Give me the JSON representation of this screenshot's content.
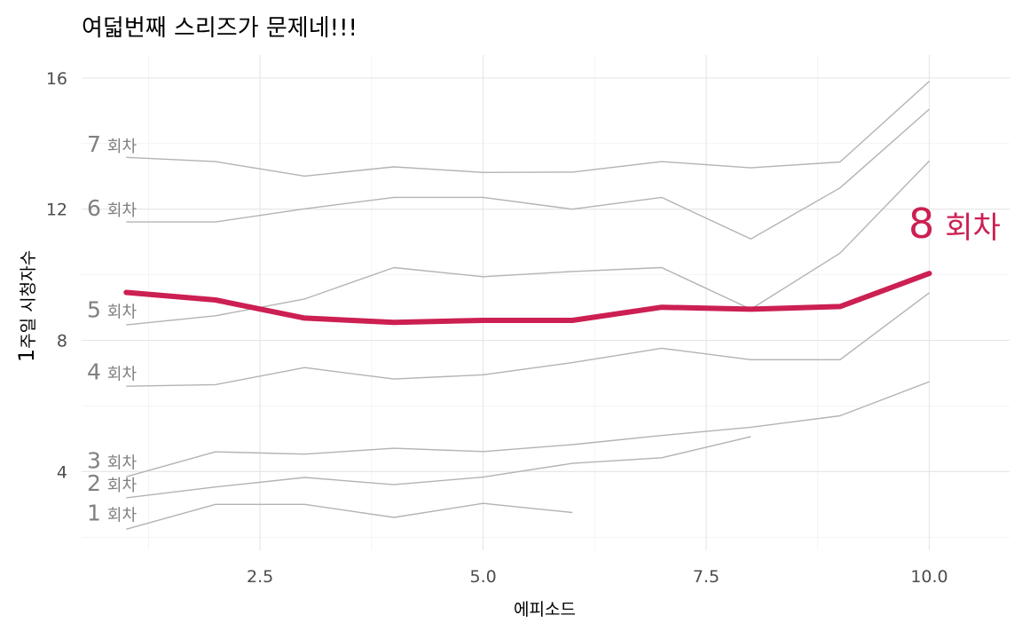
{
  "chart_data": {
    "type": "line",
    "title": "여덟번째 스리즈가 문제네!!!",
    "xlabel": "에피소드",
    "ylabel_num": "1",
    "ylabel_text": "주일 시청자수",
    "xlim": [
      0.5,
      10.9
    ],
    "ylim": [
      1.6,
      16.7
    ],
    "x_ticks": [
      2.5,
      5.0,
      7.5,
      10.0
    ],
    "x_tick_labels": [
      "2.5",
      "5.0",
      "7.5",
      "10.0"
    ],
    "y_ticks": [
      4,
      8,
      12,
      16
    ],
    "y_tick_labels": [
      "4",
      "8",
      "12",
      "16"
    ],
    "grid": true,
    "label_suffix": "회차",
    "highlight_series": "8",
    "series": [
      {
        "name": "1",
        "x": [
          1,
          2,
          3,
          4,
          5,
          6
        ],
        "values": [
          2.24,
          3.0,
          3.0,
          2.6,
          3.03,
          2.75
        ],
        "label_y": 2.75
      },
      {
        "name": "2",
        "x": [
          1,
          2,
          3,
          4,
          5,
          6,
          7,
          8
        ],
        "values": [
          3.2,
          3.53,
          3.82,
          3.6,
          3.83,
          4.25,
          4.42,
          5.06
        ],
        "label_y": 3.66
      },
      {
        "name": "3",
        "x": [
          1,
          2,
          3,
          4,
          5,
          6,
          7,
          8,
          9,
          10
        ],
        "values": [
          3.84,
          4.6,
          4.53,
          4.71,
          4.61,
          4.82,
          5.1,
          5.35,
          5.7,
          6.74
        ],
        "label_y": 4.35
      },
      {
        "name": "4",
        "x": [
          1,
          2,
          3,
          4,
          5,
          6,
          7,
          8,
          9,
          10
        ],
        "values": [
          6.6,
          6.65,
          7.17,
          6.82,
          6.95,
          7.32,
          7.76,
          7.41,
          7.41,
          9.45
        ],
        "label_y": 7.05
      },
      {
        "name": "5",
        "x": [
          1,
          2,
          3,
          4,
          5,
          6,
          7,
          8,
          9,
          10
        ],
        "values": [
          8.47,
          8.75,
          9.26,
          10.22,
          9.94,
          10.1,
          10.22,
          8.95,
          10.66,
          13.47
        ],
        "label_y": 8.95
      },
      {
        "name": "6",
        "x": [
          1,
          2,
          3,
          4,
          5,
          6,
          7,
          8,
          9,
          10
        ],
        "values": [
          11.61,
          11.61,
          12.01,
          12.36,
          12.36,
          12.0,
          12.36,
          11.09,
          12.65,
          15.05
        ],
        "label_y": 12.05
      },
      {
        "name": "7",
        "x": [
          1,
          2,
          3,
          4,
          5,
          6,
          7,
          8,
          9,
          10
        ],
        "values": [
          13.58,
          13.45,
          13.01,
          13.29,
          13.12,
          13.13,
          13.45,
          13.26,
          13.44,
          15.9
        ],
        "label_y": 14.0
      },
      {
        "name": "8",
        "x": [
          1,
          2,
          3,
          4,
          5,
          6,
          7,
          8,
          9,
          10
        ],
        "values": [
          9.46,
          9.23,
          8.68,
          8.55,
          8.61,
          8.61,
          9.01,
          8.95,
          9.03,
          10.04
        ],
        "label_y": 11.5
      }
    ]
  }
}
